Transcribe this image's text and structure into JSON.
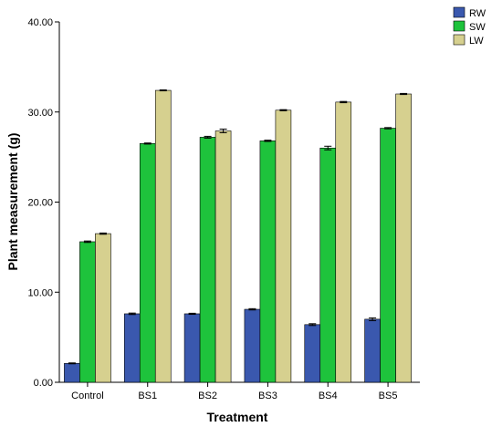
{
  "chart_data": {
    "type": "bar",
    "categories": [
      "Control",
      "BS1",
      "BS2",
      "BS3",
      "BS4",
      "BS5"
    ],
    "series": [
      {
        "name": "RW",
        "color": "#3a58ae",
        "values": [
          2.1,
          7.6,
          7.6,
          8.1,
          6.4,
          7.0
        ],
        "errors": [
          0.05,
          0.08,
          0.06,
          0.07,
          0.1,
          0.15
        ]
      },
      {
        "name": "SW",
        "color": "#1ec33c",
        "values": [
          15.6,
          26.5,
          27.2,
          26.8,
          26.0,
          28.2
        ],
        "errors": [
          0.08,
          0.06,
          0.1,
          0.07,
          0.2,
          0.07
        ]
      },
      {
        "name": "LW",
        "color": "#d6d08f",
        "values": [
          16.5,
          32.4,
          27.9,
          30.2,
          31.1,
          32.0
        ],
        "errors": [
          0.07,
          0.05,
          0.2,
          0.06,
          0.07,
          0.06
        ]
      }
    ],
    "xlabel": "Treatment",
    "ylabel": "Plant measurement (g)",
    "ylim": [
      0,
      40
    ],
    "yticks": [
      "0.00",
      "10.00",
      "20.00",
      "30.00",
      "40.00"
    ],
    "ytick_values": [
      0,
      10,
      20,
      30,
      40
    ],
    "grid": false,
    "legend_position": "top-right",
    "error_bars": true
  }
}
